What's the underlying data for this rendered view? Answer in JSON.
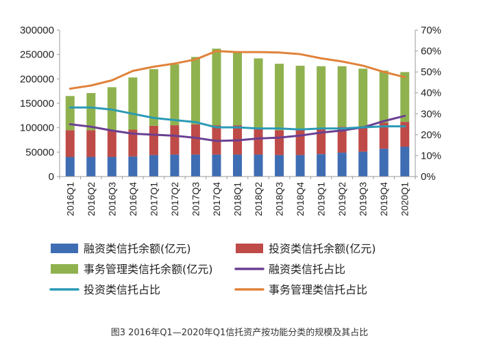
{
  "chart_data": {
    "type": "bar",
    "subtype": "stacked-bar-with-lines",
    "caption": "图3 2016年Q1—2020年Q1信托资产按功能分类的规模及其占比",
    "categories": [
      "2016Q1",
      "2016Q2",
      "2016Q3",
      "2016Q4",
      "2017Q1",
      "2017Q2",
      "2017Q3",
      "2017Q4",
      "2018Q1",
      "2018Q2",
      "2018Q3",
      "2018Q4",
      "2019Q1",
      "2019Q2",
      "2019Q3",
      "2019Q4",
      "2020Q1"
    ],
    "left_axis": {
      "ylim": [
        0,
        300000
      ],
      "ticks": [
        0,
        50000,
        100000,
        150000,
        200000,
        250000,
        300000
      ],
      "tick_labels": [
        "0",
        "50000",
        "100000",
        "150000",
        "200000",
        "250000",
        "300000"
      ]
    },
    "right_axis": {
      "ylim": [
        0,
        70
      ],
      "ticks": [
        0,
        10,
        20,
        30,
        40,
        50,
        60,
        70
      ],
      "tick_labels": [
        "0%",
        "10%",
        "20%",
        "30%",
        "40%",
        "50%",
        "60%",
        "70%"
      ]
    },
    "bar_series": [
      {
        "name": "融资类信托余额(亿元)",
        "color": "#3F6DB3",
        "values": [
          40000,
          40000,
          40000,
          41000,
          44000,
          45000,
          45000,
          45000,
          45000,
          45000,
          44000,
          44000,
          46000,
          49000,
          51000,
          57000,
          61000
        ]
      },
      {
        "name": "投资类信托余额(亿元)",
        "color": "#BE4B48",
        "values": [
          55000,
          55000,
          55000,
          55000,
          60000,
          60000,
          62000,
          60000,
          60000,
          53000,
          51000,
          52000,
          51000,
          53000,
          52000,
          53000,
          51000
        ]
      },
      {
        "name": "事务管理类信托余额(亿元)",
        "color": "#8FB24F",
        "values": [
          70000,
          76000,
          88000,
          107000,
          116000,
          125000,
          138000,
          157000,
          149000,
          144000,
          136000,
          131000,
          129000,
          124000,
          118000,
          107000,
          102000
        ]
      }
    ],
    "line_series": [
      {
        "name": "融资类信托占比",
        "color": "#6A3F92",
        "values": [
          25.0,
          23.8,
          22.0,
          20.5,
          20.0,
          19.5,
          18.5,
          17.0,
          17.3,
          18.2,
          18.6,
          19.6,
          21.0,
          22.0,
          23.5,
          26.5,
          29.0
        ]
      },
      {
        "name": "投资类信托占比",
        "color": "#2A9AB5",
        "values": [
          33.0,
          33.0,
          32.0,
          30.0,
          28.0,
          27.0,
          26.0,
          23.5,
          23.5,
          23.0,
          23.0,
          22.5,
          23.0,
          23.0,
          23.5,
          24.0,
          24.0
        ]
      },
      {
        "name": "事务管理类信托占比",
        "color": "#E0823A",
        "values": [
          42.0,
          43.5,
          46.0,
          50.5,
          52.5,
          54.0,
          56.0,
          60.0,
          59.5,
          59.5,
          59.3,
          58.5,
          56.5,
          55.0,
          53.0,
          50.0,
          47.5
        ]
      }
    ],
    "legend": [
      {
        "label": "融资类信托余额(亿元)",
        "kind": "box",
        "color": "#3F6DB3"
      },
      {
        "label": "投资类信托余额(亿元)",
        "kind": "box",
        "color": "#BE4B48"
      },
      {
        "label": "事务管理类信托余额(亿元)",
        "kind": "box",
        "color": "#8FB24F"
      },
      {
        "label": "融资类信托占比",
        "kind": "line",
        "color": "#6A3F92"
      },
      {
        "label": "投资类信托占比",
        "kind": "line",
        "color": "#2A9AB5"
      },
      {
        "label": "事务管理类信托占比",
        "kind": "line",
        "color": "#E0823A"
      }
    ],
    "grid": false,
    "legend_position": "bottom"
  }
}
